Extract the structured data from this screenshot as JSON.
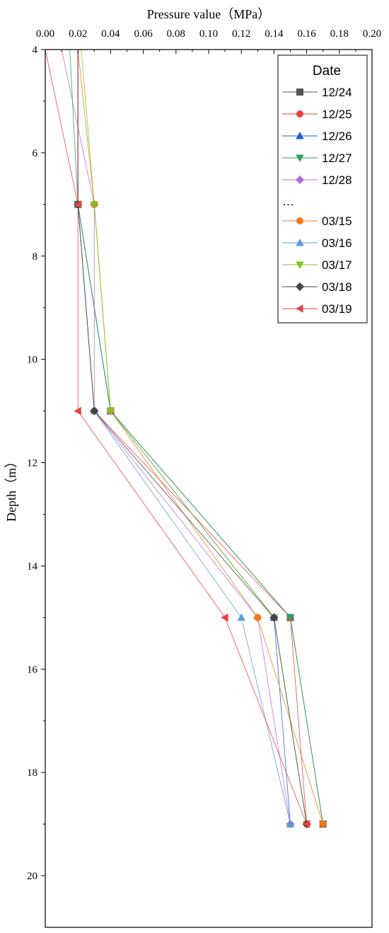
{
  "chart_data": {
    "type": "line",
    "xlabel": "Pressure value（MPa）",
    "ylabel": "Depth（m）",
    "xlim": [
      0,
      0.2
    ],
    "ylim": [
      4,
      21
    ],
    "x_axis_position": "top",
    "y_inverted": true,
    "x_ticks": [
      "0.00",
      "0.02",
      "0.04",
      "0.06",
      "0.08",
      "0.10",
      "0.12",
      "0.14",
      "0.16",
      "0.18",
      "0.20"
    ],
    "y_ticks": [
      "4",
      "6",
      "8",
      "10",
      "12",
      "14",
      "16",
      "18",
      "20"
    ],
    "grid": false,
    "legend": {
      "title": "Date",
      "placement": "top-right",
      "ellipsis": "…"
    },
    "series": [
      {
        "name": "12/24",
        "color": "#555555",
        "marker": "square",
        "points": [
          [
            0.02,
            4
          ],
          [
            0.02,
            7
          ],
          [
            0.04,
            11
          ],
          [
            0.15,
            15
          ],
          [
            0.17,
            19
          ]
        ]
      },
      {
        "name": "12/25",
        "color": "#e8413e",
        "marker": "circle",
        "points": [
          [
            0.0,
            4
          ],
          [
            0.02,
            7
          ],
          [
            0.03,
            11
          ],
          [
            0.15,
            15
          ],
          [
            0.16,
            19
          ]
        ]
      },
      {
        "name": "12/26",
        "color": "#1f5fd0",
        "marker": "triangle-up",
        "points": [
          [
            0.02,
            4
          ],
          [
            0.02,
            7
          ],
          [
            0.04,
            11
          ],
          [
            0.14,
            15
          ],
          [
            0.15,
            19
          ]
        ]
      },
      {
        "name": "12/27",
        "color": "#2aa35a",
        "marker": "triangle-down",
        "points": [
          [
            0.015,
            4
          ],
          [
            0.02,
            7
          ],
          [
            0.04,
            11
          ],
          [
            0.15,
            15
          ],
          [
            0.17,
            19
          ]
        ]
      },
      {
        "name": "12/28",
        "color": "#b06ddd",
        "marker": "diamond",
        "points": [
          [
            0.01,
            4
          ],
          [
            0.03,
            7
          ],
          [
            0.03,
            11
          ],
          [
            0.13,
            15
          ],
          [
            0.15,
            19
          ]
        ]
      },
      {
        "name": "03/15",
        "color": "#f07a1a",
        "marker": "circle",
        "points": [
          [
            0.02,
            4
          ],
          [
            0.03,
            7
          ],
          [
            0.04,
            11
          ],
          [
            0.13,
            15
          ],
          [
            0.17,
            19
          ]
        ]
      },
      {
        "name": "03/16",
        "color": "#5b9bd5",
        "marker": "triangle-up",
        "points": [
          [
            0.02,
            4
          ],
          [
            0.02,
            7
          ],
          [
            0.03,
            11
          ],
          [
            0.12,
            15
          ],
          [
            0.15,
            19
          ]
        ]
      },
      {
        "name": "03/17",
        "color": "#7cc520",
        "marker": "triangle-down",
        "points": [
          [
            0.022,
            4
          ],
          [
            0.03,
            7
          ],
          [
            0.04,
            11
          ],
          [
            0.14,
            15
          ],
          [
            0.16,
            19
          ]
        ]
      },
      {
        "name": "03/18",
        "color": "#444444",
        "marker": "diamond",
        "points": [
          [
            0.02,
            4
          ],
          [
            0.02,
            7
          ],
          [
            0.03,
            11
          ],
          [
            0.14,
            15
          ],
          [
            0.16,
            19
          ]
        ]
      },
      {
        "name": "03/19",
        "color": "#e8413e",
        "marker": "triangle-left",
        "points": [
          [
            0.02,
            4
          ],
          [
            0.02,
            7
          ],
          [
            0.02,
            11
          ],
          [
            0.11,
            15
          ],
          [
            0.16,
            19
          ]
        ]
      }
    ]
  }
}
